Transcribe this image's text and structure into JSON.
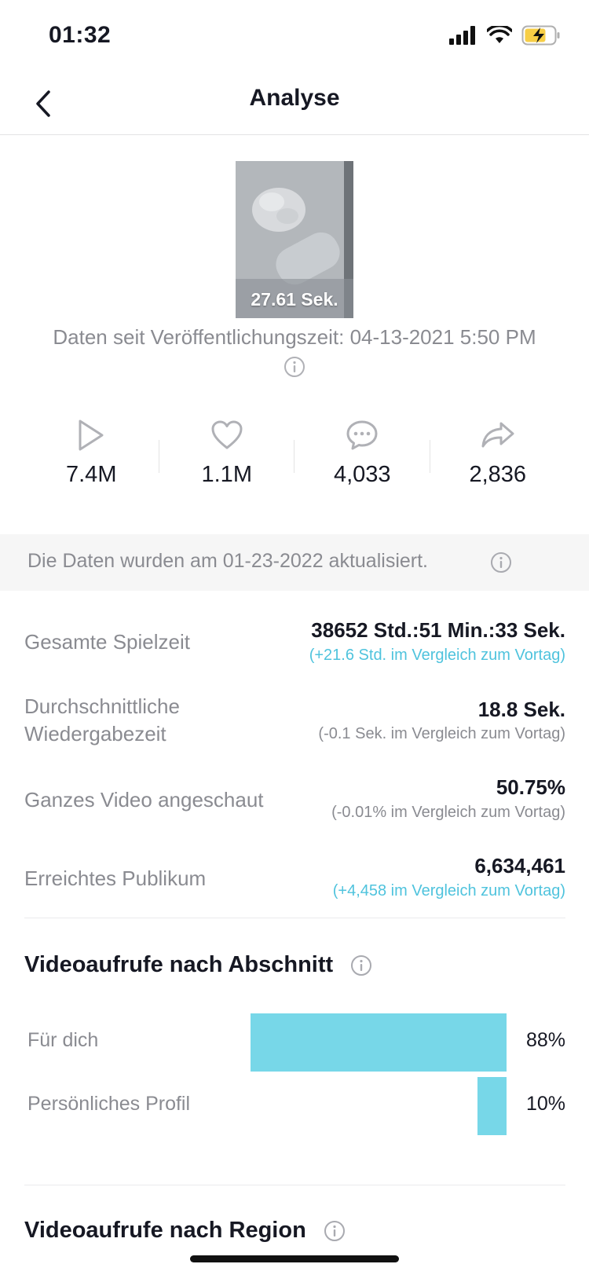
{
  "status_bar": {
    "time": "01:32"
  },
  "nav": {
    "title": "Analyse"
  },
  "video": {
    "duration": "27.61 Sek.",
    "since_text": "Daten seit Veröffentlichungszeit: 04-13-2021 5:50 PM"
  },
  "stats": {
    "views": "7.4M",
    "likes": "1.1M",
    "comments": "4,033",
    "shares": "2,836"
  },
  "update_banner": {
    "text": "Die Daten wurden am 01-23-2022 aktualisiert."
  },
  "metrics": [
    {
      "label": "Gesamte Spielzeit",
      "value": "38652 Std.:51 Min.:33 Sek.",
      "compare": "(+21.6 Std. im Vergleich zum Vortag)"
    },
    {
      "label": "Durchschnittliche Wiedergabezeit",
      "value": "18.8 Sek.",
      "compare": "(-0.1 Sek. im Vergleich zum Vortag)"
    },
    {
      "label": "Ganzes Video angeschaut",
      "value": "50.75%",
      "compare": "(-0.01% im Vergleich zum Vortag)"
    },
    {
      "label": "Erreichtes Publikum",
      "value": "6,634,461",
      "compare": "(+4,458 im Vergleich zum Vortag)"
    }
  ],
  "sections": {
    "by_section": {
      "title": "Videoaufrufe nach Abschnitt",
      "rows": [
        {
          "label": "Für dich",
          "percent": "88%",
          "fraction": 0.88
        },
        {
          "label": "Persönliches Profil",
          "percent": "10%",
          "fraction": 0.1
        }
      ]
    },
    "by_region": {
      "title": "Videoaufrufe nach Region"
    }
  },
  "colors": {
    "accent": "#77d7e8",
    "positive_text": "#4fc3dd",
    "muted_text": "#8a8b91",
    "battery": "#f7ce46"
  },
  "icons": {
    "back": "chevron-left-icon",
    "views": "play-icon",
    "likes": "heart-icon",
    "comments": "comment-icon",
    "shares": "share-icon",
    "info": "info-icon"
  }
}
